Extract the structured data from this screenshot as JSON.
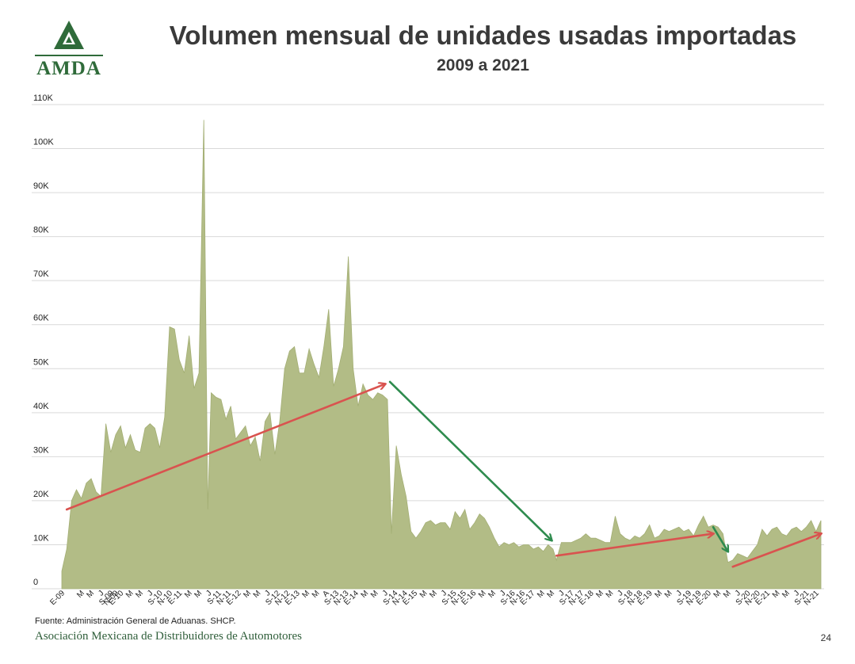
{
  "header": {
    "title": "Volumen mensual de unidades usadas importadas",
    "subtitle": "2009 a 2021",
    "logo_text": "AMDA"
  },
  "footer": {
    "source": "Fuente: Administración General de Aduanas. SHCP.",
    "organization": "Asociación Mexicana de Distribuidores de Automotores",
    "page_number": "24"
  },
  "colors": {
    "area_fill": "#b2bc86",
    "area_edge": "#a3ae74",
    "grid": "#d9d9d9",
    "arrow_red": "#d9534f",
    "arrow_green": "#2e8b4e",
    "logo_green": "#2f6b3a"
  },
  "chart_data": {
    "type": "area",
    "title": "Volumen mensual de unidades usadas importadas",
    "subtitle": "2009 a 2021",
    "xlabel": "",
    "ylabel": "",
    "ylim": [
      0,
      110000
    ],
    "yticks": [
      "0",
      "10K",
      "20K",
      "30K",
      "40K",
      "50K",
      "60K",
      "70K",
      "80K",
      "90K",
      "100K",
      "110K"
    ],
    "x_month_index_range": [
      0,
      155
    ],
    "x_tick_labels": [
      {
        "i": 0,
        "label": "E-09"
      },
      {
        "i": 4,
        "label": "M"
      },
      {
        "i": 6,
        "label": "M"
      },
      {
        "i": 8,
        "label": "J"
      },
      {
        "i": 10,
        "label": "S-09"
      },
      {
        "i": 11,
        "label": "N-09"
      },
      {
        "i": 12,
        "label": "E-10"
      },
      {
        "i": 14,
        "label": "M"
      },
      {
        "i": 16,
        "label": "M"
      },
      {
        "i": 18,
        "label": "J"
      },
      {
        "i": 20,
        "label": "S-10"
      },
      {
        "i": 22,
        "label": "N-10"
      },
      {
        "i": 24,
        "label": "E-11"
      },
      {
        "i": 26,
        "label": "M"
      },
      {
        "i": 28,
        "label": "M"
      },
      {
        "i": 30,
        "label": "J"
      },
      {
        "i": 32,
        "label": "S-11"
      },
      {
        "i": 34,
        "label": "N-11"
      },
      {
        "i": 36,
        "label": "E-12"
      },
      {
        "i": 38,
        "label": "M"
      },
      {
        "i": 40,
        "label": "M"
      },
      {
        "i": 42,
        "label": "J"
      },
      {
        "i": 44,
        "label": "S-12"
      },
      {
        "i": 46,
        "label": "N-12"
      },
      {
        "i": 48,
        "label": "E-13"
      },
      {
        "i": 50,
        "label": "M"
      },
      {
        "i": 52,
        "label": "M"
      },
      {
        "i": 54,
        "label": "A"
      },
      {
        "i": 56,
        "label": "S-13"
      },
      {
        "i": 58,
        "label": "N-13"
      },
      {
        "i": 60,
        "label": "E-14"
      },
      {
        "i": 62,
        "label": "M"
      },
      {
        "i": 64,
        "label": "M"
      },
      {
        "i": 66,
        "label": "J"
      },
      {
        "i": 68,
        "label": "S-14"
      },
      {
        "i": 70,
        "label": "N-14"
      },
      {
        "i": 72,
        "label": "E-15"
      },
      {
        "i": 74,
        "label": "M"
      },
      {
        "i": 76,
        "label": "M"
      },
      {
        "i": 78,
        "label": "J"
      },
      {
        "i": 80,
        "label": "S-15"
      },
      {
        "i": 82,
        "label": "N-15"
      },
      {
        "i": 84,
        "label": "E-16"
      },
      {
        "i": 86,
        "label": "M"
      },
      {
        "i": 88,
        "label": "M"
      },
      {
        "i": 90,
        "label": "J"
      },
      {
        "i": 92,
        "label": "S-16"
      },
      {
        "i": 94,
        "label": "N-16"
      },
      {
        "i": 96,
        "label": "E-17"
      },
      {
        "i": 98,
        "label": "M"
      },
      {
        "i": 100,
        "label": "M"
      },
      {
        "i": 102,
        "label": "J"
      },
      {
        "i": 104,
        "label": "S-17"
      },
      {
        "i": 106,
        "label": "N-17"
      },
      {
        "i": 108,
        "label": "E-18"
      },
      {
        "i": 110,
        "label": "M"
      },
      {
        "i": 112,
        "label": "M"
      },
      {
        "i": 114,
        "label": "J"
      },
      {
        "i": 116,
        "label": "S-18"
      },
      {
        "i": 118,
        "label": "N-18"
      },
      {
        "i": 120,
        "label": "E-19"
      },
      {
        "i": 122,
        "label": "M"
      },
      {
        "i": 124,
        "label": "M"
      },
      {
        "i": 126,
        "label": "J"
      },
      {
        "i": 128,
        "label": "S-19"
      },
      {
        "i": 130,
        "label": "N-19"
      },
      {
        "i": 132,
        "label": "E-20"
      },
      {
        "i": 134,
        "label": "M"
      },
      {
        "i": 136,
        "label": "M"
      },
      {
        "i": 138,
        "label": "J"
      },
      {
        "i": 140,
        "label": "S-20"
      },
      {
        "i": 142,
        "label": "N-20"
      },
      {
        "i": 144,
        "label": "E-21"
      },
      {
        "i": 146,
        "label": "M"
      },
      {
        "i": 148,
        "label": "M"
      },
      {
        "i": 150,
        "label": "J"
      },
      {
        "i": 152,
        "label": "S-21"
      },
      {
        "i": 154,
        "label": "N-21"
      }
    ],
    "series": [
      {
        "name": "Unidades usadas importadas",
        "points": [
          [
            0,
            4000
          ],
          [
            1,
            9000
          ],
          [
            2,
            20000
          ],
          [
            3,
            22500
          ],
          [
            4,
            20500
          ],
          [
            5,
            24000
          ],
          [
            6,
            25000
          ],
          [
            7,
            22000
          ],
          [
            8,
            21000
          ],
          [
            9,
            37500
          ],
          [
            10,
            31000
          ],
          [
            11,
            35000
          ],
          [
            12,
            37000
          ],
          [
            13,
            32000
          ],
          [
            14,
            35000
          ],
          [
            15,
            31500
          ],
          [
            16,
            31000
          ],
          [
            17,
            36500
          ],
          [
            18,
            37500
          ],
          [
            19,
            36500
          ],
          [
            20,
            32000
          ],
          [
            21,
            39000
          ],
          [
            22,
            59500
          ],
          [
            23,
            59000
          ],
          [
            24,
            52000
          ],
          [
            25,
            49000
          ],
          [
            26,
            57500
          ],
          [
            27,
            45500
          ],
          [
            28,
            49000
          ],
          [
            29,
            106500
          ],
          [
            29.8,
            18000
          ],
          [
            30.5,
            44500
          ],
          [
            31.5,
            43500
          ],
          [
            32.5,
            43000
          ],
          [
            33.5,
            38500
          ],
          [
            34.5,
            41500
          ],
          [
            35.5,
            34000
          ],
          [
            36.5,
            35500
          ],
          [
            37.5,
            37000
          ],
          [
            38.5,
            32500
          ],
          [
            39.5,
            34500
          ],
          [
            40.5,
            29000
          ],
          [
            41.5,
            38000
          ],
          [
            42.5,
            40000
          ],
          [
            43.5,
            30500
          ],
          [
            44.5,
            38000
          ],
          [
            45.5,
            50000
          ],
          [
            46.5,
            54000
          ],
          [
            47.5,
            55000
          ],
          [
            48.5,
            49000
          ],
          [
            49.5,
            49000
          ],
          [
            50.5,
            54500
          ],
          [
            51.5,
            51000
          ],
          [
            52.5,
            48000
          ],
          [
            53.5,
            55000
          ],
          [
            54.5,
            63500
          ],
          [
            55.5,
            46000
          ],
          [
            56.5,
            50000
          ],
          [
            57.5,
            55000
          ],
          [
            58.5,
            75500
          ],
          [
            59.5,
            50000
          ],
          [
            60.5,
            41500
          ],
          [
            61.5,
            46500
          ],
          [
            62.5,
            44000
          ],
          [
            63.5,
            43000
          ],
          [
            64.5,
            44500
          ],
          [
            65.5,
            44000
          ],
          [
            66.5,
            43000
          ],
          [
            67.3,
            12500
          ],
          [
            68.3,
            32500
          ],
          [
            69.3,
            26000
          ],
          [
            70.3,
            21000
          ],
          [
            71.3,
            13000
          ],
          [
            72.3,
            11500
          ],
          [
            73.3,
            13000
          ],
          [
            74.3,
            15000
          ],
          [
            75.3,
            15500
          ],
          [
            76.3,
            14500
          ],
          [
            77.3,
            15000
          ],
          [
            78.3,
            15000
          ],
          [
            79.3,
            13500
          ],
          [
            80.3,
            17500
          ],
          [
            81.3,
            16000
          ],
          [
            82.3,
            18000
          ],
          [
            83.3,
            13500
          ],
          [
            84.3,
            15000
          ],
          [
            85.3,
            17000
          ],
          [
            86.3,
            16000
          ],
          [
            87.3,
            14000
          ],
          [
            88.3,
            11500
          ],
          [
            89.3,
            9500
          ],
          [
            90.3,
            10500
          ],
          [
            91.3,
            10000
          ],
          [
            92.3,
            10500
          ],
          [
            93.3,
            9500
          ],
          [
            94.3,
            10000
          ],
          [
            95.3,
            10000
          ],
          [
            96.3,
            9000
          ],
          [
            97.3,
            9500
          ],
          [
            98.3,
            8500
          ],
          [
            99.3,
            10000
          ],
          [
            100.3,
            9000
          ],
          [
            101,
            6500
          ],
          [
            102,
            10500
          ],
          [
            103,
            10500
          ],
          [
            104,
            10500
          ],
          [
            105,
            11000
          ],
          [
            106,
            11500
          ],
          [
            107,
            12500
          ],
          [
            108,
            11500
          ],
          [
            109,
            11500
          ],
          [
            110,
            11000
          ],
          [
            111,
            10500
          ],
          [
            112,
            10500
          ],
          [
            113,
            16500
          ],
          [
            114,
            12500
          ],
          [
            115,
            11500
          ],
          [
            116,
            11000
          ],
          [
            117,
            12000
          ],
          [
            118,
            11500
          ],
          [
            119,
            12500
          ],
          [
            120,
            14500
          ],
          [
            121,
            11500
          ],
          [
            122,
            12000
          ],
          [
            123,
            13500
          ],
          [
            124,
            13000
          ],
          [
            125,
            13500
          ],
          [
            126,
            14000
          ],
          [
            127,
            13000
          ],
          [
            128,
            13500
          ],
          [
            129,
            12000
          ],
          [
            130,
            14500
          ],
          [
            131,
            16500
          ],
          [
            132,
            14000
          ],
          [
            133,
            14500
          ],
          [
            134,
            14000
          ],
          [
            135,
            12500
          ],
          [
            136,
            6000
          ],
          [
            137,
            6500
          ],
          [
            138,
            8000
          ],
          [
            139,
            7500
          ],
          [
            140,
            7000
          ],
          [
            141,
            8500
          ],
          [
            142,
            10000
          ],
          [
            143,
            13500
          ],
          [
            144,
            12000
          ],
          [
            145,
            13500
          ],
          [
            146,
            14000
          ],
          [
            147,
            12500
          ],
          [
            148,
            12000
          ],
          [
            149,
            13500
          ],
          [
            150,
            14000
          ],
          [
            151,
            13000
          ],
          [
            152,
            14000
          ],
          [
            153,
            15500
          ],
          [
            154,
            13000
          ],
          [
            155,
            15500
          ]
        ]
      }
    ],
    "annotations": [
      {
        "type": "arrow",
        "color": "red",
        "from": [
          1,
          18000
        ],
        "to": [
          66,
          46500
        ]
      },
      {
        "type": "arrow",
        "color": "green",
        "from": [
          67,
          47000
        ],
        "to": [
          100,
          11000
        ]
      },
      {
        "type": "arrow",
        "color": "red",
        "from": [
          101,
          7500
        ],
        "to": [
          133,
          12500
        ]
      },
      {
        "type": "arrow",
        "color": "green",
        "from": [
          133,
          14000
        ],
        "to": [
          136,
          8500
        ]
      },
      {
        "type": "arrow",
        "color": "red",
        "from": [
          137,
          5000
        ],
        "to": [
          155,
          12500
        ]
      }
    ]
  }
}
